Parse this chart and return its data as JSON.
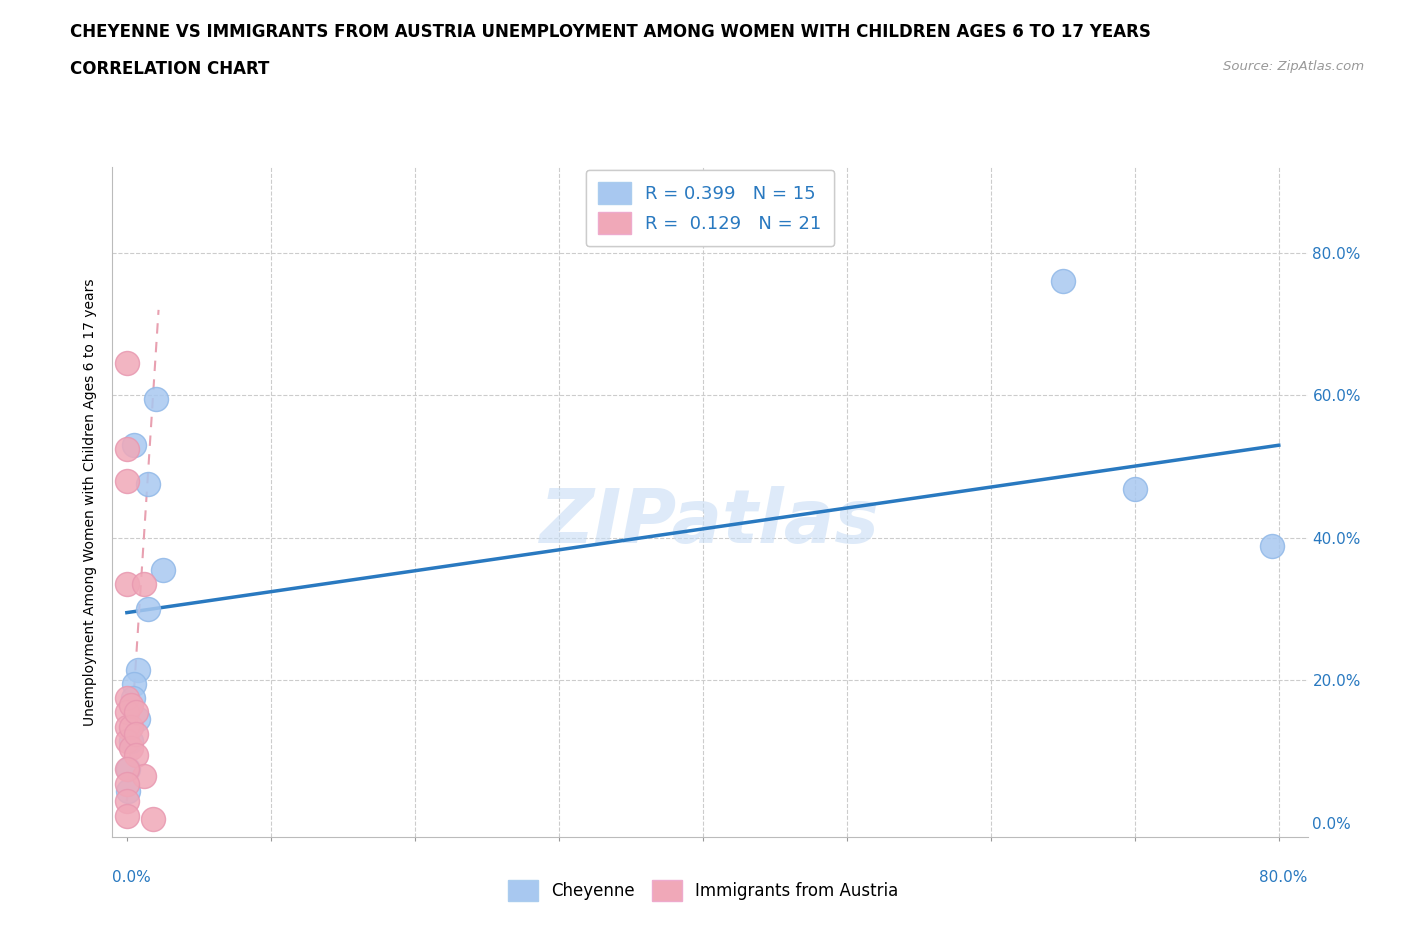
{
  "title_line1": "CHEYENNE VS IMMIGRANTS FROM AUSTRIA UNEMPLOYMENT AMONG WOMEN WITH CHILDREN AGES 6 TO 17 YEARS",
  "title_line2": "CORRELATION CHART",
  "source_text": "Source: ZipAtlas.com",
  "ylabel": "Unemployment Among Women with Children Ages 6 to 17 years",
  "xlim": [
    -0.01,
    0.82
  ],
  "ylim": [
    -0.02,
    0.92
  ],
  "xtick_positions": [
    0.0,
    0.8
  ],
  "xtick_labels": [
    "0.0%",
    "80.0%"
  ],
  "ytick_positions": [
    0.0,
    0.2,
    0.4,
    0.6,
    0.8
  ],
  "ytick_labels": [
    "0.0%",
    "20.0%",
    "40.0%",
    "60.0%",
    "80.0%"
  ],
  "R_cheyenne": 0.399,
  "N_cheyenne": 15,
  "R_austria": 0.129,
  "N_austria": 21,
  "cheyenne_color": "#a8c8f0",
  "austria_color": "#f0a8b8",
  "cheyenne_line_color": "#2979c0",
  "austria_line_color": "#e8a0b0",
  "austria_line_color_solid": "#e07090",
  "watermark": "ZIPatlas",
  "watermark_color": "#c8ddf5",
  "cheyenne_x": [
    0.005,
    0.02,
    0.015,
    0.025,
    0.015,
    0.008,
    0.005,
    0.004,
    0.008,
    0.003,
    0.001,
    0.001,
    0.65,
    0.7,
    0.795
  ],
  "cheyenne_y": [
    0.53,
    0.595,
    0.475,
    0.355,
    0.3,
    0.215,
    0.195,
    0.175,
    0.145,
    0.115,
    0.075,
    0.045,
    0.76,
    0.468,
    0.388
  ],
  "austria_x": [
    0.0,
    0.0,
    0.0,
    0.0,
    0.0,
    0.0,
    0.0,
    0.0,
    0.003,
    0.003,
    0.003,
    0.006,
    0.006,
    0.006,
    0.012,
    0.012,
    0.018,
    0.0,
    0.0,
    0.0,
    0.0
  ],
  "austria_y": [
    0.645,
    0.525,
    0.48,
    0.335,
    0.175,
    0.155,
    0.135,
    0.115,
    0.165,
    0.135,
    0.105,
    0.155,
    0.125,
    0.095,
    0.335,
    0.065,
    0.005,
    0.075,
    0.055,
    0.03,
    0.01
  ],
  "cheyenne_trend_x": [
    0.0,
    0.8
  ],
  "cheyenne_trend_y": [
    0.295,
    0.53
  ],
  "austria_trend_x": [
    0.0,
    0.022
  ],
  "austria_trend_y": [
    0.03,
    0.72
  ],
  "bottom_legend_labels": [
    "Cheyenne",
    "Immigrants from Austria"
  ],
  "grid_color": "#cccccc",
  "grid_alpha": 0.7,
  "tick_color": "#2979c0",
  "title_fontsize": 12,
  "axis_label_fontsize": 10,
  "tick_fontsize": 11
}
